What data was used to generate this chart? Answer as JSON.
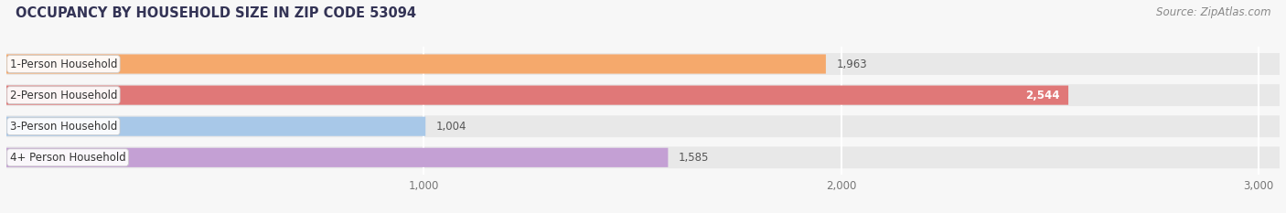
{
  "title": "OCCUPANCY BY HOUSEHOLD SIZE IN ZIP CODE 53094",
  "source": "Source: ZipAtlas.com",
  "categories": [
    "1-Person Household",
    "2-Person Household",
    "3-Person Household",
    "4+ Person Household"
  ],
  "values": [
    1963,
    2544,
    1004,
    1585
  ],
  "bar_colors": [
    "#F5A96C",
    "#E07878",
    "#A8C8E8",
    "#C4A0D4"
  ],
  "value_labels": [
    "1,963",
    "2,544",
    "1,004",
    "1,585"
  ],
  "value_label_white": [
    false,
    true,
    false,
    false
  ],
  "xlim_max": 3050,
  "xticks": [
    1000,
    2000,
    3000
  ],
  "xticklabels": [
    "1,000",
    "2,000",
    "3,000"
  ],
  "title_color": "#333355",
  "title_fontsize": 10.5,
  "source_fontsize": 8.5,
  "label_fontsize": 8.5,
  "value_fontsize": 8.5,
  "bg_color": "#f7f7f7",
  "row_bg_color": "#e8e8e8",
  "grid_color": "#ffffff"
}
